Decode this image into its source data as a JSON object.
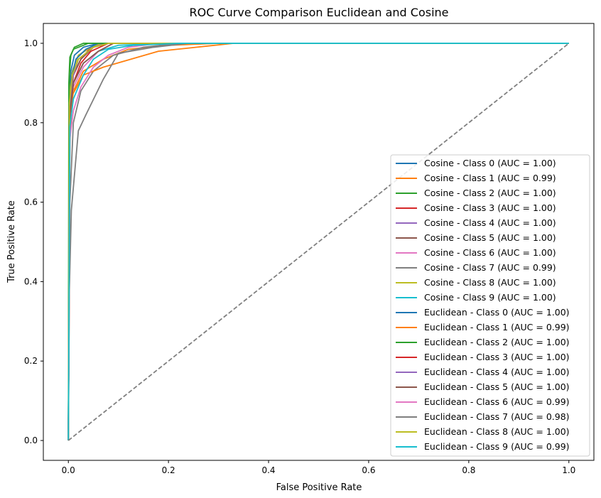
{
  "chart_data": {
    "type": "line",
    "title": "ROC Curve Comparison Euclidean and Cosine",
    "xlabel": "False Positive Rate",
    "ylabel": "True Positive Rate",
    "xlim": [
      -0.05,
      1.05
    ],
    "ylim": [
      -0.05,
      1.05
    ],
    "x_ticks": [
      "0.0",
      "0.2",
      "0.4",
      "0.6",
      "0.8",
      "1.0"
    ],
    "y_ticks": [
      "0.0",
      "0.2",
      "0.4",
      "0.6",
      "0.8",
      "1.0"
    ],
    "grid": false,
    "legend_position": "lower-right",
    "diagonal": {
      "color": "#808080",
      "style": "dashed",
      "points": [
        [
          0,
          0
        ],
        [
          1,
          1
        ]
      ]
    },
    "series": [
      {
        "name": "Cosine - Class 0 (AUC = 1.00)",
        "color": "#1f77b4",
        "points": [
          [
            0,
            0
          ],
          [
            0.002,
            0.85
          ],
          [
            0.005,
            0.93
          ],
          [
            0.012,
            0.97
          ],
          [
            0.03,
            0.99
          ],
          [
            0.06,
            1.0
          ],
          [
            1,
            1
          ]
        ]
      },
      {
        "name": "Cosine - Class 1 (AUC = 0.99)",
        "color": "#ff7f0e",
        "points": [
          [
            0,
            0
          ],
          [
            0.003,
            0.8
          ],
          [
            0.01,
            0.88
          ],
          [
            0.03,
            0.93
          ],
          [
            0.07,
            0.96
          ],
          [
            0.12,
            0.985
          ],
          [
            0.2,
            0.995
          ],
          [
            0.3,
            1.0
          ],
          [
            1,
            1
          ]
        ]
      },
      {
        "name": "Cosine - Class 2 (AUC = 1.00)",
        "color": "#2ca02c",
        "points": [
          [
            0,
            0
          ],
          [
            0.002,
            0.92
          ],
          [
            0.005,
            0.97
          ],
          [
            0.012,
            0.99
          ],
          [
            0.03,
            1.0
          ],
          [
            1,
            1
          ]
        ]
      },
      {
        "name": "Cosine - Class 3 (AUC = 1.00)",
        "color": "#d62728",
        "points": [
          [
            0,
            0
          ],
          [
            0.003,
            0.85
          ],
          [
            0.01,
            0.92
          ],
          [
            0.025,
            0.96
          ],
          [
            0.045,
            0.99
          ],
          [
            0.07,
            1.0
          ],
          [
            1,
            1
          ]
        ]
      },
      {
        "name": "Cosine - Class 4 (AUC = 1.00)",
        "color": "#9467bd",
        "points": [
          [
            0,
            0
          ],
          [
            0.002,
            0.86
          ],
          [
            0.008,
            0.93
          ],
          [
            0.02,
            0.97
          ],
          [
            0.045,
            0.99
          ],
          [
            0.07,
            1.0
          ],
          [
            1,
            1
          ]
        ]
      },
      {
        "name": "Cosine - Class 5 (AUC = 1.00)",
        "color": "#8c564b",
        "points": [
          [
            0,
            0
          ],
          [
            0.003,
            0.84
          ],
          [
            0.01,
            0.92
          ],
          [
            0.025,
            0.96
          ],
          [
            0.05,
            0.99
          ],
          [
            0.08,
            1.0
          ],
          [
            1,
            1
          ]
        ]
      },
      {
        "name": "Cosine - Class 6 (AUC = 1.00)",
        "color": "#e377c2",
        "points": [
          [
            0,
            0
          ],
          [
            0.003,
            0.82
          ],
          [
            0.01,
            0.89
          ],
          [
            0.03,
            0.94
          ],
          [
            0.06,
            0.98
          ],
          [
            0.09,
            1.0
          ],
          [
            1,
            1
          ]
        ]
      },
      {
        "name": "Cosine - Class 7 (AUC = 0.99)",
        "color": "#7f7f7f",
        "points": [
          [
            0,
            0
          ],
          [
            0.003,
            0.6
          ],
          [
            0.01,
            0.8
          ],
          [
            0.025,
            0.88
          ],
          [
            0.05,
            0.93
          ],
          [
            0.09,
            0.97
          ],
          [
            0.15,
            0.99
          ],
          [
            0.22,
            1.0
          ],
          [
            1,
            1
          ]
        ]
      },
      {
        "name": "Cosine - Class 8 (AUC = 1.00)",
        "color": "#bcbd22",
        "points": [
          [
            0,
            0
          ],
          [
            0.002,
            0.87
          ],
          [
            0.008,
            0.93
          ],
          [
            0.02,
            0.97
          ],
          [
            0.045,
            0.99
          ],
          [
            0.065,
            1.0
          ],
          [
            1,
            1
          ]
        ]
      },
      {
        "name": "Cosine - Class 9 (AUC = 1.00)",
        "color": "#17becf",
        "points": [
          [
            0,
            0
          ],
          [
            0.003,
            0.83
          ],
          [
            0.01,
            0.9
          ],
          [
            0.03,
            0.95
          ],
          [
            0.06,
            0.98
          ],
          [
            0.1,
            0.995
          ],
          [
            0.2,
            1.0
          ],
          [
            1,
            1
          ]
        ]
      },
      {
        "name": "Euclidean - Class 0 (AUC = 1.00)",
        "color": "#1f77b4",
        "points": [
          [
            0,
            0
          ],
          [
            0.002,
            0.83
          ],
          [
            0.006,
            0.91
          ],
          [
            0.015,
            0.96
          ],
          [
            0.035,
            0.985
          ],
          [
            0.06,
            1.0
          ],
          [
            1,
            1
          ]
        ]
      },
      {
        "name": "Euclidean - Class 1 (AUC = 0.99)",
        "color": "#ff7f0e",
        "points": [
          [
            0,
            0
          ],
          [
            0.003,
            0.75
          ],
          [
            0.008,
            0.87
          ],
          [
            0.03,
            0.92
          ],
          [
            0.07,
            0.94
          ],
          [
            0.18,
            0.98
          ],
          [
            0.33,
            1.0
          ],
          [
            1,
            1
          ]
        ]
      },
      {
        "name": "Euclidean - Class 2 (AUC = 1.00)",
        "color": "#2ca02c",
        "points": [
          [
            0,
            0
          ],
          [
            0.001,
            0.9
          ],
          [
            0.003,
            0.965
          ],
          [
            0.01,
            0.985
          ],
          [
            0.02,
            0.99
          ],
          [
            0.04,
            1.0
          ],
          [
            1,
            1
          ]
        ]
      },
      {
        "name": "Euclidean - Class 3 (AUC = 1.00)",
        "color": "#d62728",
        "points": [
          [
            0,
            0
          ],
          [
            0.003,
            0.82
          ],
          [
            0.01,
            0.9
          ],
          [
            0.025,
            0.95
          ],
          [
            0.045,
            0.98
          ],
          [
            0.08,
            1.0
          ],
          [
            1,
            1
          ]
        ]
      },
      {
        "name": "Euclidean - Class 4 (AUC = 1.00)",
        "color": "#9467bd",
        "points": [
          [
            0,
            0
          ],
          [
            0.002,
            0.84
          ],
          [
            0.008,
            0.91
          ],
          [
            0.02,
            0.96
          ],
          [
            0.05,
            0.99
          ],
          [
            0.08,
            1.0
          ],
          [
            1,
            1
          ]
        ]
      },
      {
        "name": "Euclidean - Class 5 (AUC = 1.00)",
        "color": "#8c564b",
        "points": [
          [
            0,
            0
          ],
          [
            0.003,
            0.82
          ],
          [
            0.01,
            0.9
          ],
          [
            0.03,
            0.95
          ],
          [
            0.06,
            0.98
          ],
          [
            0.09,
            1.0
          ],
          [
            1,
            1
          ]
        ]
      },
      {
        "name": "Euclidean - Class 6 (AUC = 0.99)",
        "color": "#e377c2",
        "points": [
          [
            0,
            0
          ],
          [
            0.003,
            0.76
          ],
          [
            0.01,
            0.83
          ],
          [
            0.025,
            0.89
          ],
          [
            0.05,
            0.94
          ],
          [
            0.08,
            0.97
          ],
          [
            0.12,
            0.99
          ],
          [
            0.18,
            1.0
          ],
          [
            1,
            1
          ]
        ]
      },
      {
        "name": "Euclidean - Class 7 (AUC = 0.98)",
        "color": "#7f7f7f",
        "points": [
          [
            0,
            0
          ],
          [
            0.002,
            0.38
          ],
          [
            0.006,
            0.58
          ],
          [
            0.02,
            0.78
          ],
          [
            0.035,
            0.82
          ],
          [
            0.07,
            0.91
          ],
          [
            0.1,
            0.975
          ],
          [
            0.17,
            0.99
          ],
          [
            0.24,
            1.0
          ],
          [
            1,
            1
          ]
        ]
      },
      {
        "name": "Euclidean - Class 8 (AUC = 1.00)",
        "color": "#bcbd22",
        "points": [
          [
            0,
            0
          ],
          [
            0.002,
            0.85
          ],
          [
            0.008,
            0.92
          ],
          [
            0.02,
            0.96
          ],
          [
            0.05,
            0.99
          ],
          [
            0.08,
            1.0
          ],
          [
            1,
            1
          ]
        ]
      },
      {
        "name": "Euclidean - Class 9 (AUC = 0.99)",
        "color": "#17becf",
        "points": [
          [
            0,
            0
          ],
          [
            0.003,
            0.79
          ],
          [
            0.01,
            0.86
          ],
          [
            0.03,
            0.92
          ],
          [
            0.05,
            0.96
          ],
          [
            0.08,
            0.985
          ],
          [
            0.13,
            0.995
          ],
          [
            0.22,
            1.0
          ],
          [
            1,
            1
          ]
        ]
      }
    ]
  }
}
